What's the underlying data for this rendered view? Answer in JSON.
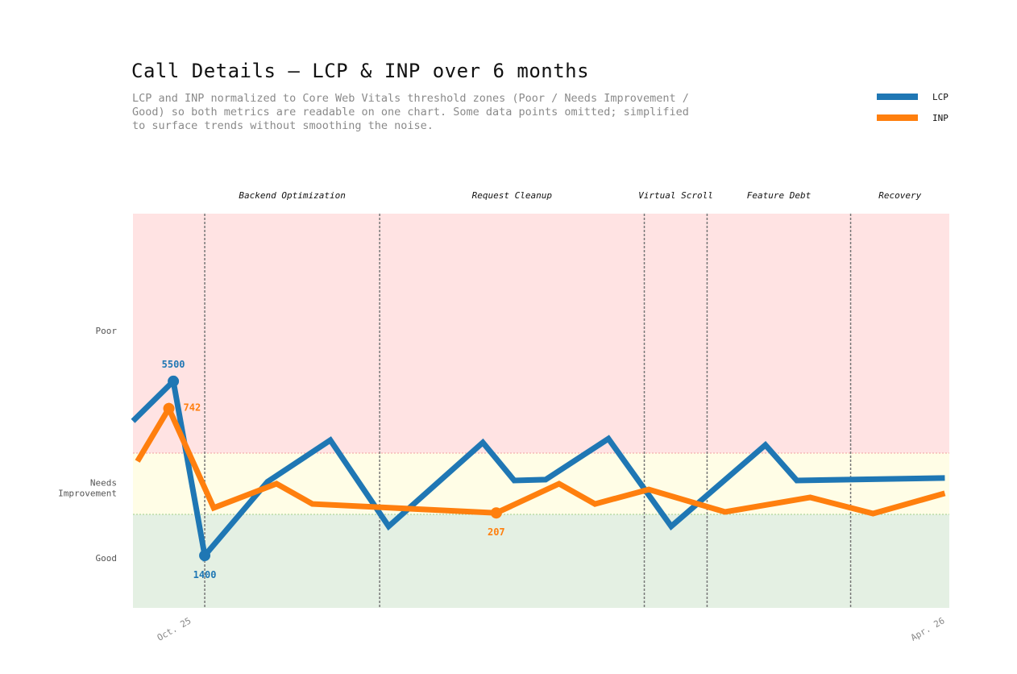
{
  "chart_data": {
    "type": "line",
    "title": "Call Details — LCP & INP over 6 months",
    "subtitle": "LCP and INP normalized to Core Web Vitals threshold zones (Poor / Needs Improvement / Good) so both metrics are readable on one chart. Some data points omitted; simplified to surface trends without smoothing the noise.",
    "xlim": [
      "2025-10-01",
      "2026-04-01"
    ],
    "x_ticks": [
      {
        "date": "2025-10-15",
        "label": "Oct. 25"
      },
      {
        "date": "2026-04-01",
        "label": "Apr. 26"
      }
    ],
    "zones": [
      {
        "label": "Good",
        "color": "#e4f0e3",
        "lcp": [
          0,
          2500
        ],
        "inp": [
          0,
          200
        ]
      },
      {
        "label": "Needs Improvement",
        "label_lines": [
          "Needs",
          "Improvement"
        ],
        "color": "#fffde6",
        "lcp": [
          2500,
          4000
        ],
        "inp": [
          200,
          500
        ]
      },
      {
        "label": "Poor",
        "color": "#ffe3e3",
        "lcp": [
          4000,
          9000
        ],
        "inp": [
          500,
          1800
        ]
      }
    ],
    "threshold_colors": {
      "poor": "#f0a0a0",
      "good": "#9fd08a"
    },
    "legend_position": "top-right",
    "series": [
      {
        "name": "LCP",
        "color": "#1f77b4",
        "x": [
          "2025-10-01",
          "2025-10-10",
          "2025-10-17",
          "2025-10-31",
          "2025-11-14",
          "2025-11-27",
          "2025-12-18",
          "2025-12-25",
          "2026-01-01",
          "2026-01-15",
          "2026-01-29",
          "2026-02-19",
          "2026-02-26",
          "2026-03-31"
        ],
        "y": [
          4670,
          5500,
          1400,
          3300,
          4270,
          2180,
          4220,
          3330,
          3350,
          4300,
          2180,
          4170,
          3330,
          3390
        ],
        "labeled_points": [
          {
            "index": 1,
            "text": "5500",
            "pos": "above"
          },
          {
            "index": 2,
            "text": "1400",
            "pos": "below"
          }
        ]
      },
      {
        "name": "INP",
        "color": "#ff7f0e",
        "x": [
          "2025-10-02",
          "2025-10-09",
          "2025-10-19",
          "2025-11-02",
          "2025-11-10",
          "2025-12-21",
          "2026-01-04",
          "2026-01-12",
          "2026-01-24",
          "2026-02-10",
          "2026-03-01",
          "2026-03-15",
          "2026-03-31"
        ],
        "y": [
          460,
          742,
          232,
          350,
          251,
          207,
          350,
          251,
          322,
          212,
          283,
          204,
          303
        ],
        "labeled_points": [
          {
            "index": 1,
            "text": "742",
            "pos": "right"
          },
          {
            "index": 5,
            "text": "207",
            "pos": "below"
          }
        ]
      }
    ],
    "phases": [
      {
        "start": "2025-10-17",
        "label": "Backend Optimization"
      },
      {
        "start": "2025-11-25",
        "label": "Request Cleanup"
      },
      {
        "start": "2026-01-23",
        "label": "Virtual Scroll"
      },
      {
        "start": "2026-02-06",
        "label": "Feature  Debt"
      },
      {
        "start": "2026-03-10",
        "label": "Recovery"
      }
    ]
  }
}
